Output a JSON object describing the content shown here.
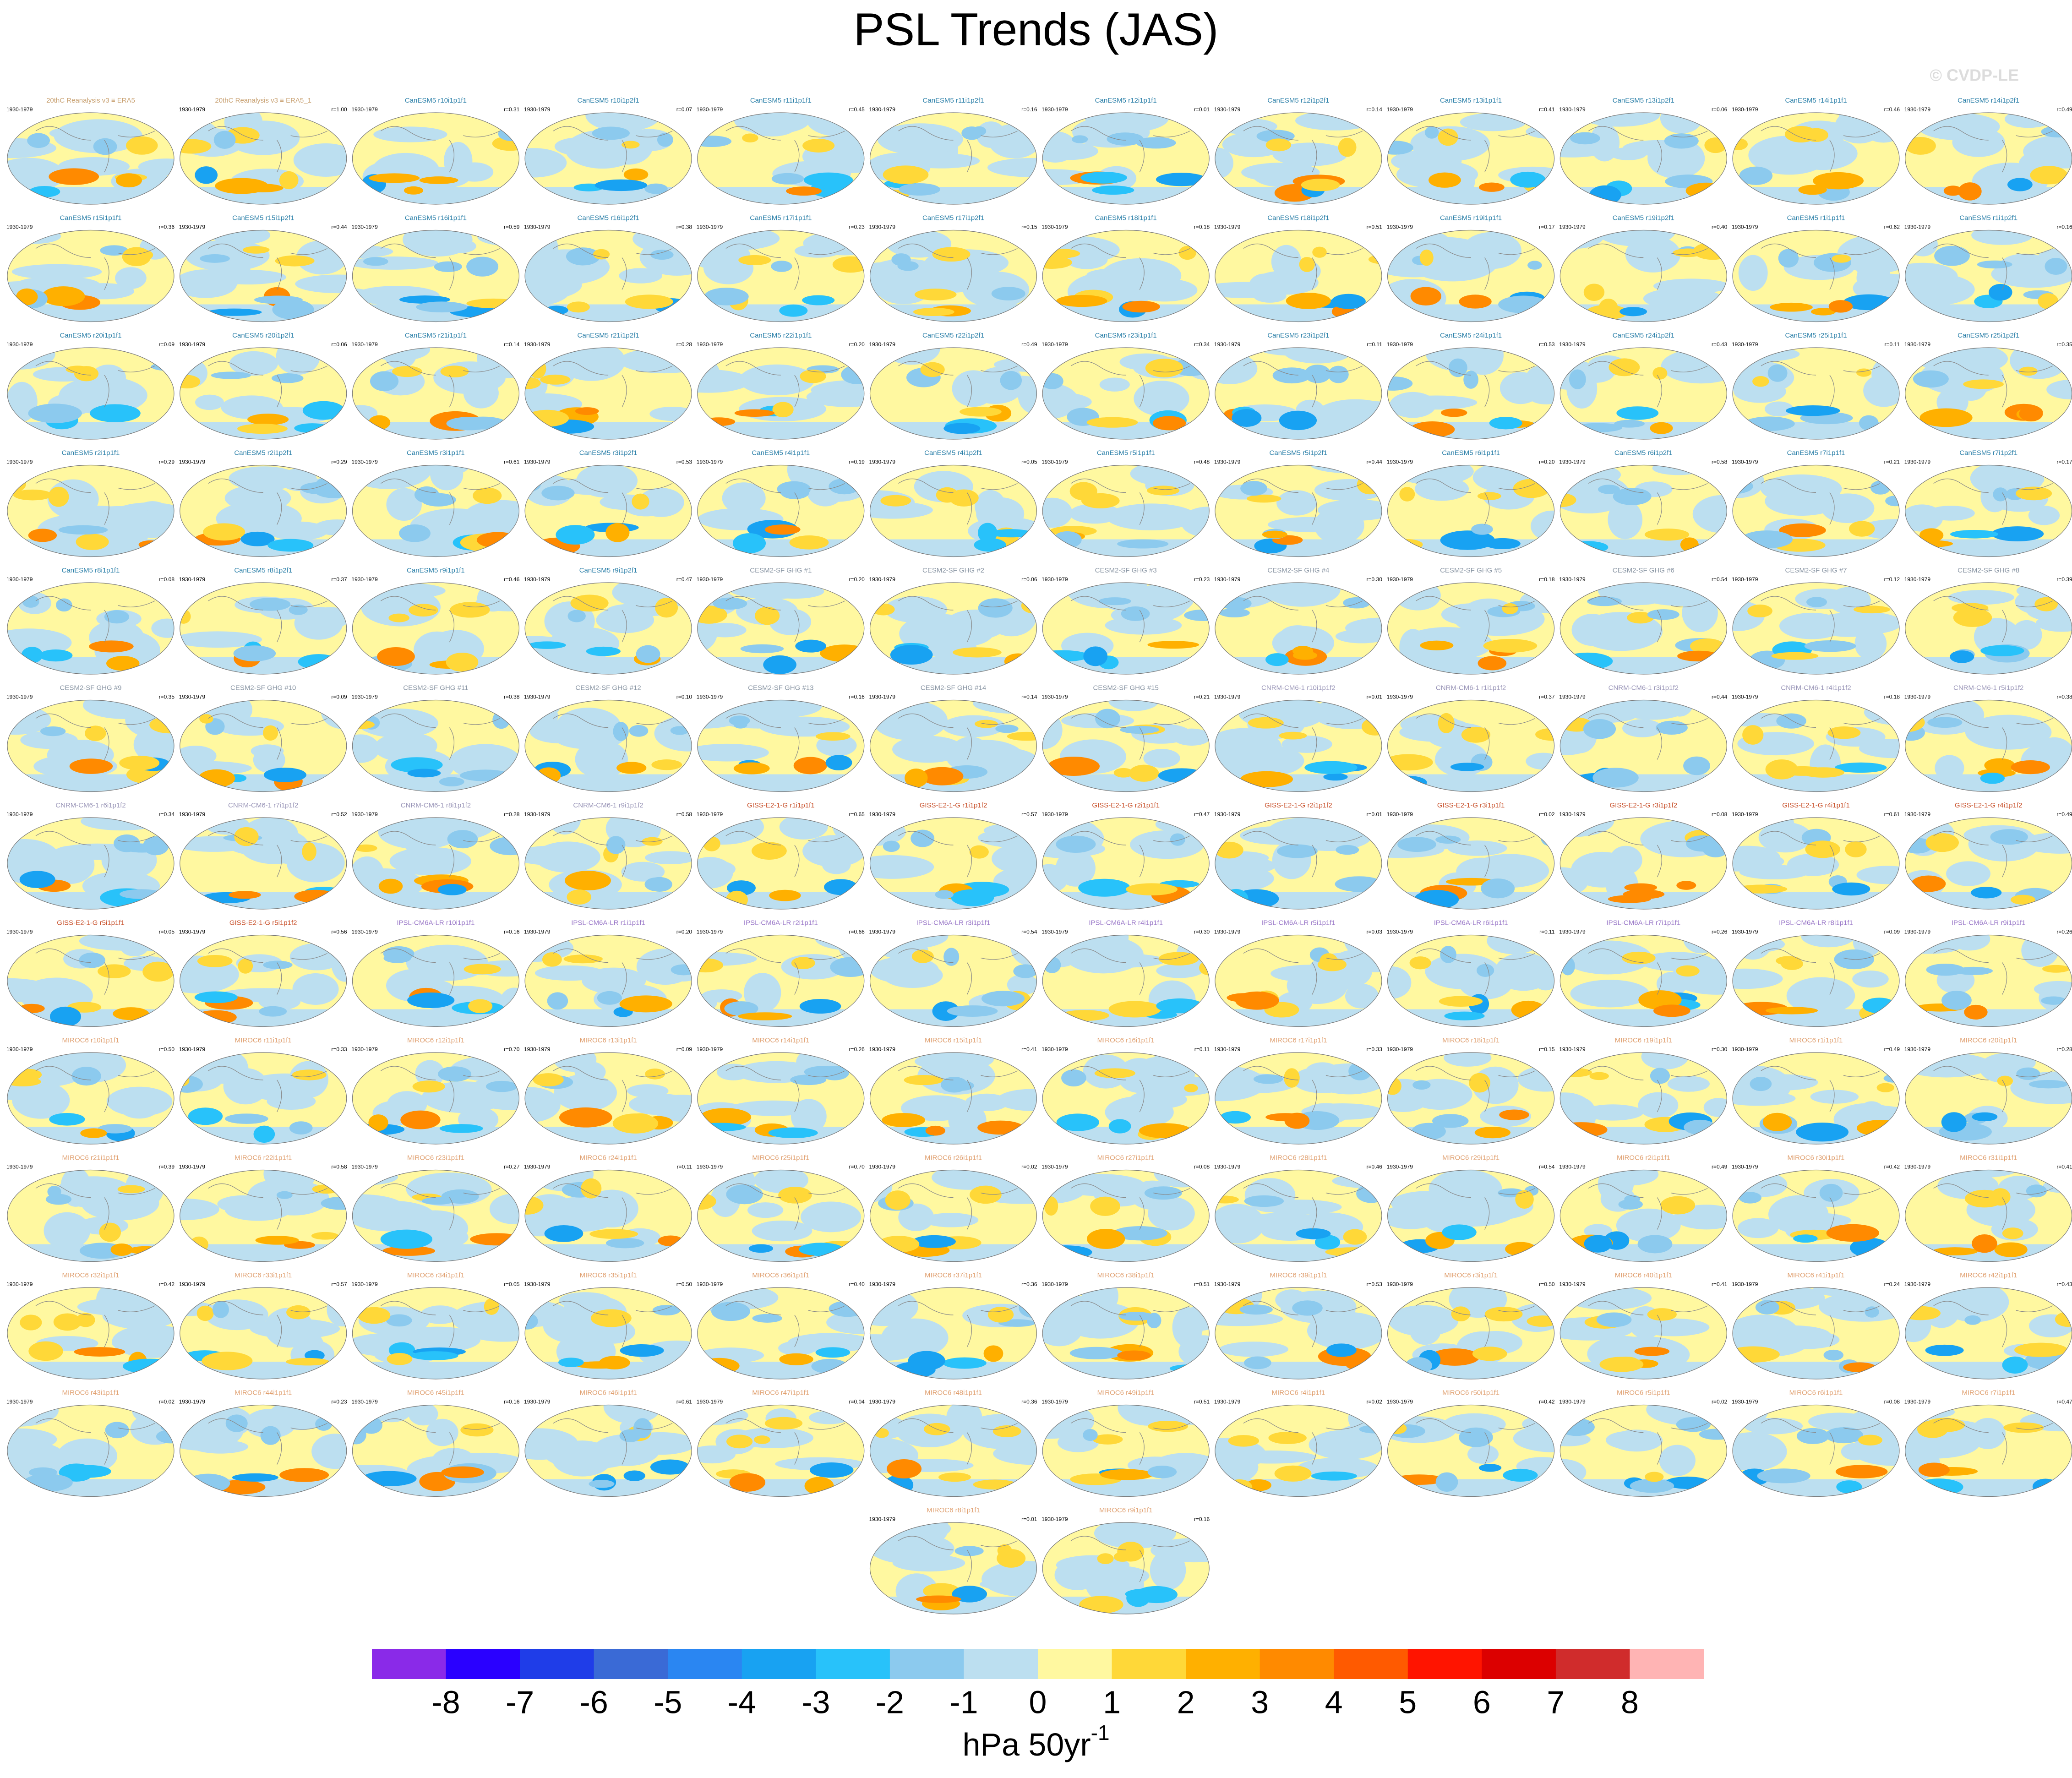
{
  "title": "PSL Trends (JAS)",
  "watermark": "© CVDP-LE",
  "period": "1930-1979",
  "panels": [
    {
      "name": "20thC Reanalysis v3 ≡ ERA5",
      "color": "#c8a070"
    },
    {
      "name": "20thC Reanalysis v3 ≡ ERA5_1",
      "r": "r=1.00",
      "color": "#c8a070"
    },
    {
      "name": "CanESM5 r10i1p1f1",
      "r": "r=0.31",
      "color": "#2a7fa8"
    },
    {
      "name": "CanESM5 r10i1p2f1",
      "r": "r=0.07",
      "color": "#2a7fa8"
    },
    {
      "name": "CanESM5 r11i1p1f1",
      "r": "r=0.45",
      "color": "#2a7fa8"
    },
    {
      "name": "CanESM5 r11i1p2f1",
      "r": "r=0.16",
      "color": "#2a7fa8"
    },
    {
      "name": "CanESM5 r12i1p1f1",
      "r": "r=0.01",
      "color": "#2a7fa8"
    },
    {
      "name": "CanESM5 r12i1p2f1",
      "r": "r=0.14",
      "color": "#2a7fa8"
    },
    {
      "name": "CanESM5 r13i1p1f1",
      "r": "r=0.41",
      "color": "#2a7fa8"
    },
    {
      "name": "CanESM5 r13i1p2f1",
      "r": "r=0.06",
      "color": "#2a7fa8"
    },
    {
      "name": "CanESM5 r14i1p1f1",
      "r": "r=0.46",
      "color": "#2a7fa8"
    },
    {
      "name": "CanESM5 r14i1p2f1",
      "r": "r=0.49",
      "color": "#2a7fa8"
    },
    {
      "name": "CanESM5 r15i1p1f1",
      "r": "r=0.36",
      "color": "#2a7fa8"
    },
    {
      "name": "CanESM5 r15i1p2f1",
      "r": "r=0.44",
      "color": "#2a7fa8"
    },
    {
      "name": "CanESM5 r16i1p1f1",
      "r": "r=0.59",
      "color": "#2a7fa8"
    },
    {
      "name": "CanESM5 r16i1p2f1",
      "r": "r=0.38",
      "color": "#2a7fa8"
    },
    {
      "name": "CanESM5 r17i1p1f1",
      "r": "r=0.23",
      "color": "#2a7fa8"
    },
    {
      "name": "CanESM5 r17i1p2f1",
      "r": "r=0.15",
      "color": "#2a7fa8"
    },
    {
      "name": "CanESM5 r18i1p1f1",
      "r": "r=0.18",
      "color": "#2a7fa8"
    },
    {
      "name": "CanESM5 r18i1p2f1",
      "r": "r=0.51",
      "color": "#2a7fa8"
    },
    {
      "name": "CanESM5 r19i1p1f1",
      "r": "r=0.17",
      "color": "#2a7fa8"
    },
    {
      "name": "CanESM5 r19i1p2f1",
      "r": "r=0.40",
      "color": "#2a7fa8"
    },
    {
      "name": "CanESM5 r1i1p1f1",
      "r": "r=0.62",
      "color": "#2a7fa8"
    },
    {
      "name": "CanESM5 r1i1p2f1",
      "r": "r=0.16",
      "color": "#2a7fa8"
    },
    {
      "name": "CanESM5 r20i1p1f1",
      "r": "r=0.09",
      "color": "#2a7fa8"
    },
    {
      "name": "CanESM5 r20i1p2f1",
      "r": "r=0.06",
      "color": "#2a7fa8"
    },
    {
      "name": "CanESM5 r21i1p1f1",
      "r": "r=0.14",
      "color": "#2a7fa8"
    },
    {
      "name": "CanESM5 r21i1p2f1",
      "r": "r=0.28",
      "color": "#2a7fa8"
    },
    {
      "name": "CanESM5 r22i1p1f1",
      "r": "r=0.20",
      "color": "#2a7fa8"
    },
    {
      "name": "CanESM5 r22i1p2f1",
      "r": "r=0.49",
      "color": "#2a7fa8"
    },
    {
      "name": "CanESM5 r23i1p1f1",
      "r": "r=0.34",
      "color": "#2a7fa8"
    },
    {
      "name": "CanESM5 r23i1p2f1",
      "r": "r=0.11",
      "color": "#2a7fa8"
    },
    {
      "name": "CanESM5 r24i1p1f1",
      "r": "r=0.53",
      "color": "#2a7fa8"
    },
    {
      "name": "CanESM5 r24i1p2f1",
      "r": "r=0.43",
      "color": "#2a7fa8"
    },
    {
      "name": "CanESM5 r25i1p1f1",
      "r": "r=0.11",
      "color": "#2a7fa8"
    },
    {
      "name": "CanESM5 r25i1p2f1",
      "r": "r=0.35",
      "color": "#2a7fa8"
    },
    {
      "name": "CanESM5 r2i1p1f1",
      "r": "r=0.29",
      "color": "#2a7fa8"
    },
    {
      "name": "CanESM5 r2i1p2f1",
      "r": "r=0.29",
      "color": "#2a7fa8"
    },
    {
      "name": "CanESM5 r3i1p1f1",
      "r": "r=0.61",
      "color": "#2a7fa8"
    },
    {
      "name": "CanESM5 r3i1p2f1",
      "r": "r=0.53",
      "color": "#2a7fa8"
    },
    {
      "name": "CanESM5 r4i1p1f1",
      "r": "r=0.19",
      "color": "#2a7fa8"
    },
    {
      "name": "CanESM5 r4i1p2f1",
      "r": "r=0.05",
      "color": "#2a7fa8"
    },
    {
      "name": "CanESM5 r5i1p1f1",
      "r": "r=0.48",
      "color": "#2a7fa8"
    },
    {
      "name": "CanESM5 r5i1p2f1",
      "r": "r=0.44",
      "color": "#2a7fa8"
    },
    {
      "name": "CanESM5 r6i1p1f1",
      "r": "r=0.20",
      "color": "#2a7fa8"
    },
    {
      "name": "CanESM5 r6i1p2f1",
      "r": "r=0.58",
      "color": "#2a7fa8"
    },
    {
      "name": "CanESM5 r7i1p1f1",
      "r": "r=0.21",
      "color": "#2a7fa8"
    },
    {
      "name": "CanESM5 r7i1p2f1",
      "r": "r=0.17",
      "color": "#2a7fa8"
    },
    {
      "name": "CanESM5 r8i1p1f1",
      "r": "r=0.08",
      "color": "#2a7fa8"
    },
    {
      "name": "CanESM5 r8i1p2f1",
      "r": "r=0.37",
      "color": "#2a7fa8"
    },
    {
      "name": "CanESM5 r9i1p1f1",
      "r": "r=0.46",
      "color": "#2a7fa8"
    },
    {
      "name": "CanESM5 r9i1p2f1",
      "r": "r=0.47",
      "color": "#2a7fa8"
    },
    {
      "name": "CESM2-SF GHG #1",
      "r": "r=0.20",
      "color": "#8a96a4"
    },
    {
      "name": "CESM2-SF GHG #2",
      "r": "r=0.06",
      "color": "#8a96a4"
    },
    {
      "name": "CESM2-SF GHG #3",
      "r": "r=0.23",
      "color": "#8a96a4"
    },
    {
      "name": "CESM2-SF GHG #4",
      "r": "r=0.30",
      "color": "#8a96a4"
    },
    {
      "name": "CESM2-SF GHG #5",
      "r": "r=0.18",
      "color": "#8a96a4"
    },
    {
      "name": "CESM2-SF GHG #6",
      "r": "r=0.54",
      "color": "#8a96a4"
    },
    {
      "name": "CESM2-SF GHG #7",
      "r": "r=0.12",
      "color": "#8a96a4"
    },
    {
      "name": "CESM2-SF GHG #8",
      "r": "r=0.39",
      "color": "#8a96a4"
    },
    {
      "name": "CESM2-SF GHG #9",
      "r": "r=0.35",
      "color": "#8a96a4"
    },
    {
      "name": "CESM2-SF GHG #10",
      "r": "r=0.09",
      "color": "#8a96a4"
    },
    {
      "name": "CESM2-SF GHG #11",
      "r": "r=0.38",
      "color": "#8a96a4"
    },
    {
      "name": "CESM2-SF GHG #12",
      "r": "r=0.10",
      "color": "#8a96a4"
    },
    {
      "name": "CESM2-SF GHG #13",
      "r": "r=0.16",
      "color": "#8a96a4"
    },
    {
      "name": "CESM2-SF GHG #14",
      "r": "r=0.14",
      "color": "#8a96a4"
    },
    {
      "name": "CESM2-SF GHG #15",
      "r": "r=0.21",
      "color": "#8a96a4"
    },
    {
      "name": "CNRM-CM6-1 r10i1p1f2",
      "r": "r=0.01",
      "color": "#9a96b8"
    },
    {
      "name": "CNRM-CM6-1 r1i1p1f2",
      "r": "r=0.37",
      "color": "#9a96b8"
    },
    {
      "name": "CNRM-CM6-1 r3i1p1f2",
      "r": "r=0.44",
      "color": "#9a96b8"
    },
    {
      "name": "CNRM-CM6-1 r4i1p1f2",
      "r": "r=0.18",
      "color": "#9a96b8"
    },
    {
      "name": "CNRM-CM6-1 r5i1p1f2",
      "r": "r=0.38",
      "color": "#9a96b8"
    },
    {
      "name": "CNRM-CM6-1 r6i1p1f2",
      "r": "r=0.34",
      "color": "#9a96b8"
    },
    {
      "name": "CNRM-CM6-1 r7i1p1f2",
      "r": "r=0.52",
      "color": "#9a96b8"
    },
    {
      "name": "CNRM-CM6-1 r8i1p1f2",
      "r": "r=0.28",
      "color": "#9a96b8"
    },
    {
      "name": "CNRM-CM6-1 r9i1p1f2",
      "r": "r=0.58",
      "color": "#9a96b8"
    },
    {
      "name": "GISS-E2-1-G r1i1p1f1",
      "r": "r=0.65",
      "color": "#c8502a"
    },
    {
      "name": "GISS-E2-1-G r1i1p1f2",
      "r": "r=0.57",
      "color": "#c8502a"
    },
    {
      "name": "GISS-E2-1-G r2i1p1f1",
      "r": "r=0.47",
      "color": "#c8502a"
    },
    {
      "name": "GISS-E2-1-G r2i1p1f2",
      "r": "r=0.01",
      "color": "#c8502a"
    },
    {
      "name": "GISS-E2-1-G r3i1p1f1",
      "r": "r=0.02",
      "color": "#c8502a"
    },
    {
      "name": "GISS-E2-1-G r3i1p1f2",
      "r": "r=0.08",
      "color": "#c8502a"
    },
    {
      "name": "GISS-E2-1-G r4i1p1f1",
      "r": "r=0.61",
      "color": "#c8502a"
    },
    {
      "name": "GISS-E2-1-G r4i1p1f2",
      "r": "r=0.49",
      "color": "#c8502a"
    },
    {
      "name": "GISS-E2-1-G r5i1p1f1",
      "r": "r=0.05",
      "color": "#c8502a"
    },
    {
      "name": "GISS-E2-1-G r5i1p1f2",
      "r": "r=0.56",
      "color": "#c8502a"
    },
    {
      "name": "IPSL-CM6A-LR r10i1p1f1",
      "r": "r=0.16",
      "color": "#9a78c8"
    },
    {
      "name": "IPSL-CM6A-LR r1i1p1f1",
      "r": "r=0.20",
      "color": "#9a78c8"
    },
    {
      "name": "IPSL-CM6A-LR r2i1p1f1",
      "r": "r=0.66",
      "color": "#9a78c8"
    },
    {
      "name": "IPSL-CM6A-LR r3i1p1f1",
      "r": "r=0.54",
      "color": "#9a78c8"
    },
    {
      "name": "IPSL-CM6A-LR r4i1p1f1",
      "r": "r=0.30",
      "color": "#9a78c8"
    },
    {
      "name": "IPSL-CM6A-LR r5i1p1f1",
      "r": "r=0.03",
      "color": "#9a78c8"
    },
    {
      "name": "IPSL-CM6A-LR r6i1p1f1",
      "r": "r=0.11",
      "color": "#9a78c8"
    },
    {
      "name": "IPSL-CM6A-LR r7i1p1f1",
      "r": "r=0.26",
      "color": "#9a78c8"
    },
    {
      "name": "IPSL-CM6A-LR r8i1p1f1",
      "r": "r=0.09",
      "color": "#9a78c8"
    },
    {
      "name": "IPSL-CM6A-LR r9i1p1f1",
      "r": "r=0.26",
      "color": "#9a78c8"
    },
    {
      "name": "MIROC6 r10i1p1f1",
      "r": "r=0.50",
      "color": "#e0a070"
    },
    {
      "name": "MIROC6 r11i1p1f1",
      "r": "r=0.33",
      "color": "#e0a070"
    },
    {
      "name": "MIROC6 r12i1p1f1",
      "r": "r=0.70",
      "color": "#e0a070"
    },
    {
      "name": "MIROC6 r13i1p1f1",
      "r": "r=0.09",
      "color": "#e0a070"
    },
    {
      "name": "MIROC6 r14i1p1f1",
      "r": "r=0.26",
      "color": "#e0a070"
    },
    {
      "name": "MIROC6 r15i1p1f1",
      "r": "r=0.41",
      "color": "#e0a070"
    },
    {
      "name": "MIROC6 r16i1p1f1",
      "r": "r=0.11",
      "color": "#e0a070"
    },
    {
      "name": "MIROC6 r17i1p1f1",
      "r": "r=0.33",
      "color": "#e0a070"
    },
    {
      "name": "MIROC6 r18i1p1f1",
      "r": "r=0.15",
      "color": "#e0a070"
    },
    {
      "name": "MIROC6 r19i1p1f1",
      "r": "r=0.30",
      "color": "#e0a070"
    },
    {
      "name": "MIROC6 r1i1p1f1",
      "r": "r=0.49",
      "color": "#e0a070"
    },
    {
      "name": "MIROC6 r20i1p1f1",
      "r": "r=0.28",
      "color": "#e0a070"
    },
    {
      "name": "MIROC6 r21i1p1f1",
      "r": "r=0.39",
      "color": "#e0a070"
    },
    {
      "name": "MIROC6 r22i1p1f1",
      "r": "r=0.58",
      "color": "#e0a070"
    },
    {
      "name": "MIROC6 r23i1p1f1",
      "r": "r=0.27",
      "color": "#e0a070"
    },
    {
      "name": "MIROC6 r24i1p1f1",
      "r": "r=0.11",
      "color": "#e0a070"
    },
    {
      "name": "MIROC6 r25i1p1f1",
      "r": "r=0.70",
      "color": "#e0a070"
    },
    {
      "name": "MIROC6 r26i1p1f1",
      "r": "r=0.02",
      "color": "#e0a070"
    },
    {
      "name": "MIROC6 r27i1p1f1",
      "r": "r=0.08",
      "color": "#e0a070"
    },
    {
      "name": "MIROC6 r28i1p1f1",
      "r": "r=0.46",
      "color": "#e0a070"
    },
    {
      "name": "MIROC6 r29i1p1f1",
      "r": "r=0.54",
      "color": "#e0a070"
    },
    {
      "name": "MIROC6 r2i1p1f1",
      "r": "r=0.49",
      "color": "#e0a070"
    },
    {
      "name": "MIROC6 r30i1p1f1",
      "r": "r=0.42",
      "color": "#e0a070"
    },
    {
      "name": "MIROC6 r31i1p1f1",
      "r": "r=0.41",
      "color": "#e0a070"
    },
    {
      "name": "MIROC6 r32i1p1f1",
      "r": "r=0.42",
      "color": "#e0a070"
    },
    {
      "name": "MIROC6 r33i1p1f1",
      "r": "r=0.57",
      "color": "#e0a070"
    },
    {
      "name": "MIROC6 r34i1p1f1",
      "r": "r=0.05",
      "color": "#e0a070"
    },
    {
      "name": "MIROC6 r35i1p1f1",
      "r": "r=0.50",
      "color": "#e0a070"
    },
    {
      "name": "MIROC6 r36i1p1f1",
      "r": "r=0.40",
      "color": "#e0a070"
    },
    {
      "name": "MIROC6 r37i1p1f1",
      "r": "r=0.36",
      "color": "#e0a070"
    },
    {
      "name": "MIROC6 r38i1p1f1",
      "r": "r=0.51",
      "color": "#e0a070"
    },
    {
      "name": "MIROC6 r39i1p1f1",
      "r": "r=0.53",
      "color": "#e0a070"
    },
    {
      "name": "MIROC6 r3i1p1f1",
      "r": "r=0.50",
      "color": "#e0a070"
    },
    {
      "name": "MIROC6 r40i1p1f1",
      "r": "r=0.41",
      "color": "#e0a070"
    },
    {
      "name": "MIROC6 r41i1p1f1",
      "r": "r=0.24",
      "color": "#e0a070"
    },
    {
      "name": "MIROC6 r42i1p1f1",
      "r": "r=0.43",
      "color": "#e0a070"
    },
    {
      "name": "MIROC6 r43i1p1f1",
      "r": "r=0.02",
      "color": "#e0a070"
    },
    {
      "name": "MIROC6 r44i1p1f1",
      "r": "r=0.23",
      "color": "#e0a070"
    },
    {
      "name": "MIROC6 r45i1p1f1",
      "r": "r=0.16",
      "color": "#e0a070"
    },
    {
      "name": "MIROC6 r46i1p1f1",
      "r": "r=0.61",
      "color": "#e0a070"
    },
    {
      "name": "MIROC6 r47i1p1f1",
      "r": "r=0.04",
      "color": "#e0a070"
    },
    {
      "name": "MIROC6 r48i1p1f1",
      "r": "r=0.36",
      "color": "#e0a070"
    },
    {
      "name": "MIROC6 r49i1p1f1",
      "r": "r=0.51",
      "color": "#e0a070"
    },
    {
      "name": "MIROC6 r4i1p1f1",
      "r": "r=0.02",
      "color": "#e0a070"
    },
    {
      "name": "MIROC6 r50i1p1f1",
      "r": "r=0.42",
      "color": "#e0a070"
    },
    {
      "name": "MIROC6 r5i1p1f1",
      "r": "r=0.02",
      "color": "#e0a070"
    },
    {
      "name": "MIROC6 r6i1p1f1",
      "r": "r=0.08",
      "color": "#e0a070"
    },
    {
      "name": "MIROC6 r7i1p1f1",
      "r": "r=0.47",
      "color": "#e0a070"
    },
    {
      "name": "MIROC6 r8i1p1f1",
      "r": "r=0.01",
      "color": "#e0a070"
    },
    {
      "name": "MIROC6 r9i1p1f1",
      "r": "r=0.16",
      "color": "#e0a070"
    }
  ],
  "chart_data": {
    "type": "colorbar",
    "lim": [
      -9,
      9
    ],
    "ticks": [
      -8,
      -7,
      -6,
      -5,
      -4,
      -3,
      -2,
      -1,
      0,
      1,
      2,
      3,
      4,
      5,
      6,
      7,
      8
    ],
    "colors": [
      "#8a2ae8",
      "#2a00ff",
      "#1f3de8",
      "#3a6ad6",
      "#2a86f2",
      "#18a2f2",
      "#28c2fa",
      "#8ccaee",
      "#bcdff0",
      "#fff8a0",
      "#ffd838",
      "#ffb000",
      "#ff8a00",
      "#ff5a00",
      "#ff1400",
      "#dc0000",
      "#d02c2c",
      "#ffb4b4"
    ],
    "unit": {
      "text": "hPa 50yr",
      "superscript": "-1"
    }
  }
}
